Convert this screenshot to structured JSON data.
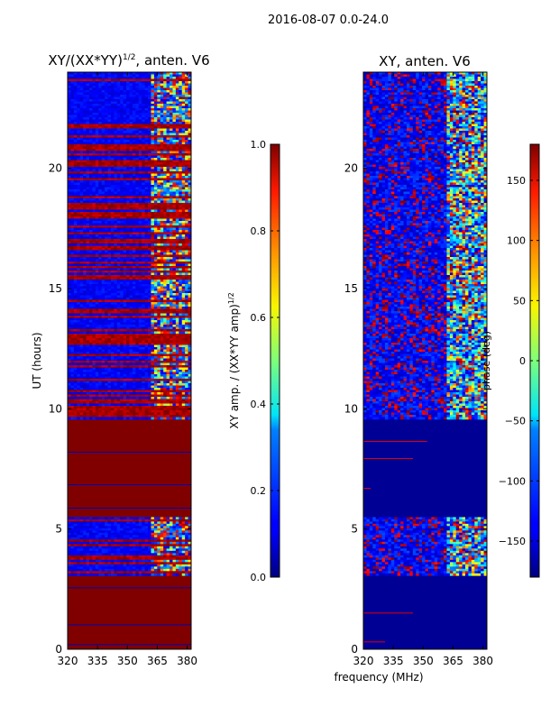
{
  "suptitle": "2016-08-07 0.0-24.0",
  "chart_data": [
    {
      "type": "heatmap",
      "title": "XY/(XX*YY)",
      "title_sup": "1/2",
      "title_suffix": ", anten. V6",
      "xlabel": "",
      "ylabel": "UT (hours)",
      "xlim": [
        320,
        382
      ],
      "ylim": [
        0,
        24
      ],
      "xticks": [
        "320",
        "335",
        "350",
        "365",
        "380"
      ],
      "xtick_values": [
        320,
        335,
        350,
        365,
        380
      ],
      "yticks": [
        "0",
        "5",
        "10",
        "15",
        "20"
      ],
      "ytick_values": [
        0,
        5,
        10,
        15,
        20
      ],
      "colorbar": {
        "label": "XY amp. / (XX*YY amp)",
        "label_sup": "1/2",
        "range": [
          0.0,
          1.0
        ],
        "ticks": [
          "0.0",
          "0.2",
          "0.4",
          "0.6",
          "0.8",
          "1.0"
        ],
        "tick_values": [
          0.0,
          0.2,
          0.4,
          0.6,
          0.8,
          1.0
        ],
        "colormap": "jet"
      },
      "regions": [
        {
          "ut_start": 0.0,
          "ut_end": 3.1,
          "value": 1.0,
          "note": "saturated"
        },
        {
          "ut_start": 3.1,
          "ut_end": 5.5,
          "value": 0.1,
          "note": "low amp, bright above 361 MHz"
        },
        {
          "ut_start": 5.5,
          "ut_end": 9.6,
          "value": 1.0,
          "note": "saturated"
        },
        {
          "ut_start": 9.6,
          "ut_end": 24.0,
          "value": 0.15,
          "note": "low amp with red streaks, bright above 361 MHz"
        }
      ]
    },
    {
      "type": "heatmap",
      "title": "XY, anten. V6",
      "xlabel": "frequency (MHz)",
      "ylabel": "",
      "xlim": [
        320,
        382
      ],
      "ylim": [
        0,
        24
      ],
      "xticks": [
        "320",
        "335",
        "350",
        "365",
        "380"
      ],
      "xtick_values": [
        320,
        335,
        350,
        365,
        380
      ],
      "yticks": [
        "0",
        "5",
        "10",
        "15",
        "20"
      ],
      "ytick_values": [
        0,
        5,
        10,
        15,
        20
      ],
      "colorbar": {
        "label": "phase (deg)",
        "range": [
          -180,
          180
        ],
        "ticks": [
          "−150",
          "−100",
          "−50",
          "0",
          "50",
          "100",
          "150"
        ],
        "tick_values": [
          -150,
          -100,
          -50,
          0,
          50,
          100,
          150
        ],
        "colormap": "jet"
      },
      "regions": [
        {
          "ut_start": 0.0,
          "ut_end": 3.1,
          "value": -180,
          "note": "flat phase"
        },
        {
          "ut_start": 3.1,
          "ut_end": 5.5,
          "value": -120,
          "note": "mixed phase"
        },
        {
          "ut_start": 5.5,
          "ut_end": 9.6,
          "value": -180,
          "note": "flat phase"
        },
        {
          "ut_start": 9.6,
          "ut_end": 24.0,
          "value": -120,
          "note": "mixed phase with red columns"
        }
      ]
    }
  ]
}
